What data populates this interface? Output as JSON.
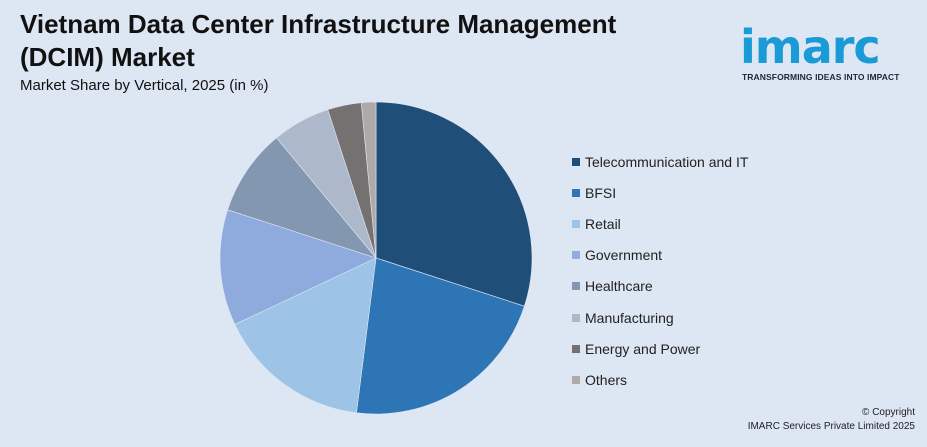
{
  "header": {
    "title": "Vietnam Data Center Infrastructure Management (DCIM) Market",
    "subtitle": "Market Share by Vertical, 2025 (in %)"
  },
  "logo": {
    "wordmark": "imarc",
    "tagline": "TRANSFORMING IDEAS INTO IMPACT",
    "color": "#1a9ad6"
  },
  "footer": {
    "copyright": "© Copyright",
    "company": "IMARC Services Private Limited 2025"
  },
  "chart_data": {
    "type": "pie",
    "title": "Market Share by Vertical, 2025 (in %)",
    "legend_position": "right",
    "unit": "%",
    "slices": [
      {
        "label": "Telecommunication and IT",
        "value": 30,
        "color": "#1f4e79"
      },
      {
        "label": "BFSI",
        "value": 22,
        "color": "#2e75b6"
      },
      {
        "label": "Retail",
        "value": 16,
        "color": "#9dc3e6"
      },
      {
        "label": "Government",
        "value": 12,
        "color": "#8faadc"
      },
      {
        "label": "Healthcare",
        "value": 9,
        "color": "#8497b0"
      },
      {
        "label": "Manufacturing",
        "value": 6,
        "color": "#adb9ca"
      },
      {
        "label": "Energy and Power",
        "value": 3.5,
        "color": "#767171"
      },
      {
        "label": "Others",
        "value": 1.5,
        "color": "#aeaaaa"
      }
    ]
  }
}
